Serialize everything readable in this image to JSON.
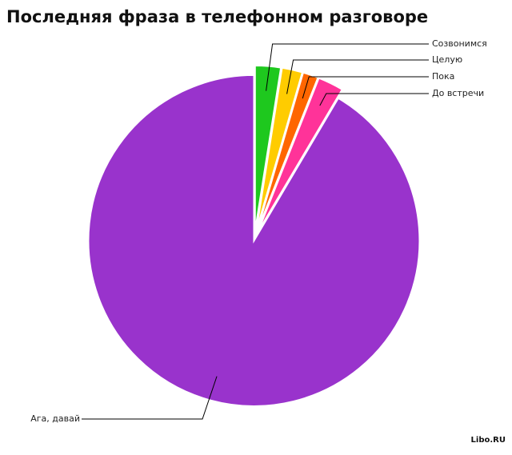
{
  "chart_data": {
    "type": "pie",
    "title": "Последняя фраза в телефонном разговоре",
    "categories": [
      "Созвонимся",
      "Целую",
      "Пока",
      "До встречи",
      "Ага, давай"
    ],
    "values": [
      2.5,
      2,
      1.5,
      2.5,
      91.5
    ],
    "colors": [
      "#1ec81e",
      "#ffcc00",
      "#ff6600",
      "#ff3399",
      "#9933cc"
    ]
  },
  "watermark": "Libo.RU"
}
